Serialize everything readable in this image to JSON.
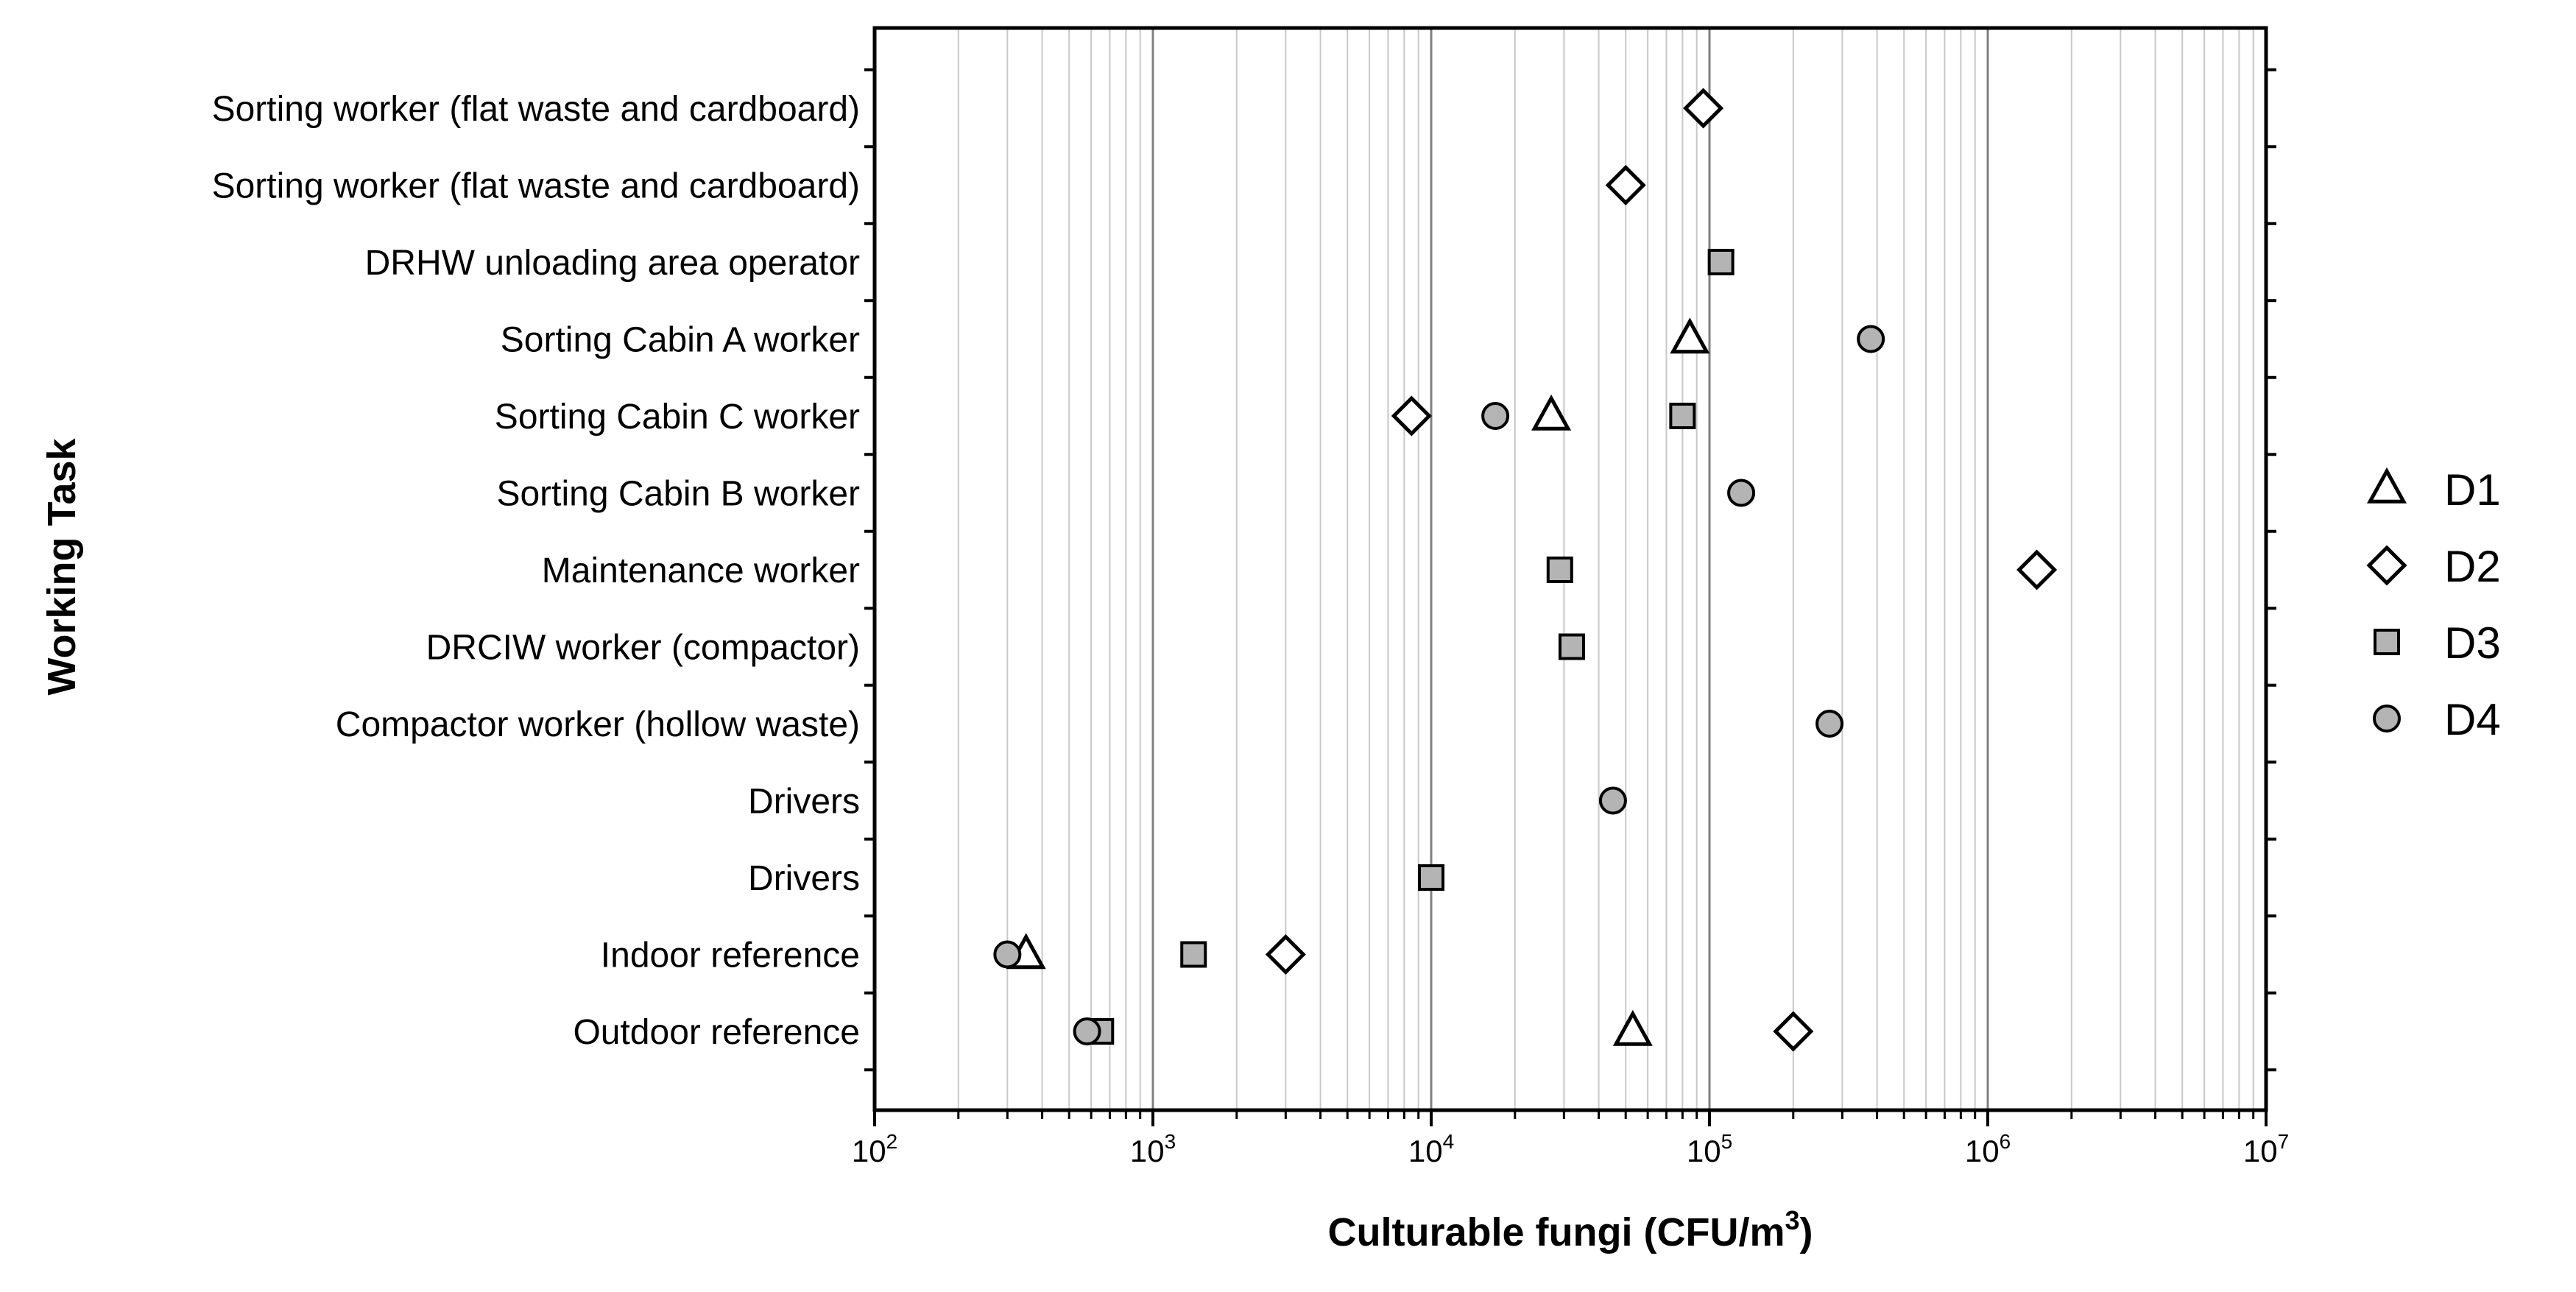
{
  "chart_data": {
    "type": "scatter",
    "xscale": "log",
    "xlim": [
      100,
      10000000
    ],
    "xticks": [
      {
        "base": "10",
        "exp": "2"
      },
      {
        "base": "10",
        "exp": "3"
      },
      {
        "base": "10",
        "exp": "4"
      },
      {
        "base": "10",
        "exp": "5"
      },
      {
        "base": "10",
        "exp": "6"
      },
      {
        "base": "10",
        "exp": "7"
      }
    ],
    "xlabel": "Culturable fungi (CFU/m",
    "xlabel_sup": "3",
    "xlabel_end": ")",
    "ylabel": "Working Task",
    "grid": "vertical",
    "legend_position": "right",
    "categories": [
      "Sorting worker (flat waste and cardboard)",
      "Sorting worker (flat waste and cardboard)",
      "DRHW unloading area operator",
      "Sorting Cabin A worker",
      "Sorting Cabin C worker",
      "Sorting Cabin B worker",
      "Maintenance worker",
      "DRCIW worker (compactor)",
      "Compactor worker (hollow waste)",
      "Drivers",
      "Drivers",
      "Indoor reference",
      "Outdoor reference"
    ],
    "series": [
      {
        "name": "D1",
        "marker": "triangle-open",
        "color": "#000000",
        "points": [
          {
            "category_index": 3,
            "x": 85000
          },
          {
            "category_index": 4,
            "x": 27000
          },
          {
            "category_index": 11,
            "x": 350
          },
          {
            "category_index": 12,
            "x": 53000
          }
        ]
      },
      {
        "name": "D2",
        "marker": "diamond-open",
        "color": "#000000",
        "points": [
          {
            "category_index": 0,
            "x": 95000
          },
          {
            "category_index": 1,
            "x": 50000
          },
          {
            "category_index": 4,
            "x": 8500
          },
          {
            "category_index": 6,
            "x": 1500000
          },
          {
            "category_index": 11,
            "x": 3000
          },
          {
            "category_index": 12,
            "x": 200000
          }
        ]
      },
      {
        "name": "D3",
        "marker": "square-filled",
        "color": "#b4b4b4",
        "points": [
          {
            "category_index": 2,
            "x": 110000
          },
          {
            "category_index": 4,
            "x": 80000
          },
          {
            "category_index": 6,
            "x": 29000
          },
          {
            "category_index": 7,
            "x": 32000
          },
          {
            "category_index": 10,
            "x": 10000
          },
          {
            "category_index": 11,
            "x": 1400
          },
          {
            "category_index": 12,
            "x": 650
          }
        ]
      },
      {
        "name": "D4",
        "marker": "circle-filled",
        "color": "#b4b4b4",
        "points": [
          {
            "category_index": 3,
            "x": 380000
          },
          {
            "category_index": 4,
            "x": 17000
          },
          {
            "category_index": 5,
            "x": 130000
          },
          {
            "category_index": 8,
            "x": 270000
          },
          {
            "category_index": 9,
            "x": 45000
          },
          {
            "category_index": 11,
            "x": 300
          },
          {
            "category_index": 12,
            "x": 580
          }
        ]
      }
    ]
  }
}
